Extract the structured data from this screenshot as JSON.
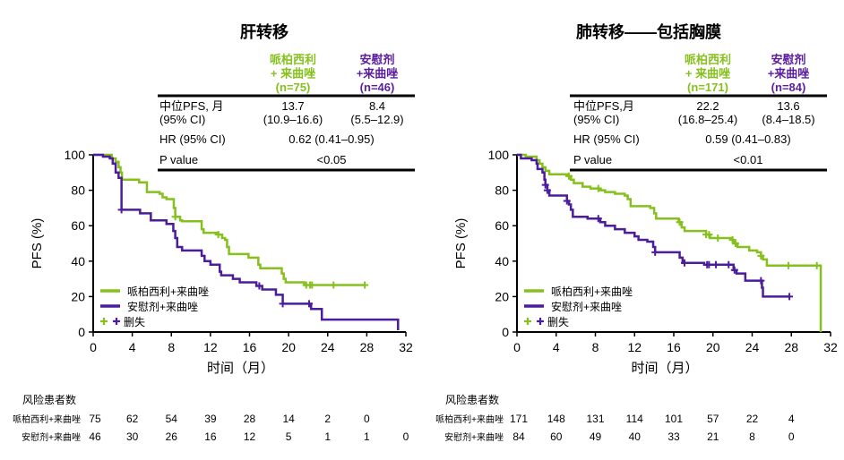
{
  "colors": {
    "treatment": "#86c01c",
    "control": "#4b1c9c",
    "control_text": "#5b1f9e"
  },
  "chart_data": [
    {
      "type": "line",
      "subtype": "kaplan-meier",
      "title": "肝转移",
      "xlabel": "时间（月）",
      "ylabel": "PFS (%)",
      "xlim": [
        0,
        32
      ],
      "ylim": [
        0,
        100
      ],
      "xticks": [
        "0",
        "4",
        "8",
        "12",
        "16",
        "20",
        "24",
        "28",
        "32"
      ],
      "yticks": [
        "0",
        "20",
        "40",
        "60",
        "80",
        "100"
      ],
      "legend": {
        "position": "bottom-left",
        "entries": [
          "哌柏西利+来曲唑",
          "安慰剂+来曲唑"
        ],
        "censor_label": "删失"
      },
      "table": {
        "columns": [
          {
            "lines": [
              "哌柏西利",
              "+ 来曲唑",
              "(n=75)"
            ]
          },
          {
            "lines": [
              "安慰剂",
              "+来曲唑",
              "(n=46)"
            ]
          }
        ],
        "rows": [
          {
            "label": [
              "中位PFS, 月",
              "(95% CI)"
            ],
            "values": [
              [
                "13.7",
                "(10.9–16.6)"
              ],
              [
                "8.4",
                "(5.5–12.9)"
              ]
            ]
          },
          {
            "label": [
              "HR (95% CI)"
            ],
            "shared": "0.62 (0.41–0.95)"
          },
          {
            "label": [
              "P value"
            ],
            "shared": "<0.05"
          }
        ]
      },
      "series": [
        {
          "name": "哌柏西利+来曲唑",
          "steps": [
            [
              0,
              100
            ],
            [
              1.9,
              98
            ],
            [
              2.3,
              96
            ],
            [
              2.6,
              93
            ],
            [
              2.8,
              90
            ],
            [
              2.95,
              86
            ],
            [
              4.7,
              84.5
            ],
            [
              5.5,
              79
            ],
            [
              6.8,
              78
            ],
            [
              7.1,
              76
            ],
            [
              7.5,
              75
            ],
            [
              8.25,
              70
            ],
            [
              8.4,
              65
            ],
            [
              8.9,
              63
            ],
            [
              9.1,
              62.5
            ],
            [
              11.1,
              58
            ],
            [
              11.3,
              56
            ],
            [
              12.8,
              55
            ],
            [
              13.2,
              53
            ],
            [
              13.5,
              52
            ],
            [
              13.7,
              48
            ],
            [
              13.9,
              44
            ],
            [
              15.9,
              42
            ],
            [
              16.9,
              38
            ],
            [
              17.1,
              36
            ],
            [
              19.3,
              33
            ],
            [
              19.5,
              30
            ],
            [
              19.7,
              28
            ],
            [
              21.6,
              26.5
            ]
          ],
          "end": 27.8,
          "censored": [
            8.4,
            12.8,
            21.8,
            22.2,
            22.4,
            24.6,
            27.8
          ]
        },
        {
          "name": "安慰剂+来曲唑",
          "steps": [
            [
              0,
              100
            ],
            [
              1.0,
              99
            ],
            [
              1.7,
              98
            ],
            [
              2.0,
              95
            ],
            [
              2.3,
              90
            ],
            [
              2.6,
              87
            ],
            [
              2.9,
              69
            ],
            [
              4.8,
              67
            ],
            [
              5.9,
              63
            ],
            [
              7.5,
              61
            ],
            [
              8.2,
              57
            ],
            [
              8.4,
              53
            ],
            [
              8.6,
              48
            ],
            [
              9.1,
              46
            ],
            [
              11.1,
              43
            ],
            [
              11.4,
              40
            ],
            [
              12.0,
              38
            ],
            [
              12.95,
              34
            ],
            [
              13.1,
              32
            ],
            [
              14.3,
              30
            ],
            [
              15.0,
              28
            ],
            [
              16.7,
              26
            ],
            [
              17.3,
              24
            ],
            [
              18.7,
              21
            ],
            [
              19.4,
              16
            ],
            [
              22.3,
              13
            ],
            [
              23.4,
              7
            ],
            [
              31.2,
              1
            ]
          ],
          "end": 31.2,
          "censored": [
            2.9,
            17.0,
            19.4,
            22.1
          ]
        }
      ],
      "risk_table": {
        "title": "风险患者数",
        "rows": [
          {
            "label": "哌柏西利+来曲唑",
            "values": [
              "75",
              "62",
              "54",
              "39",
              "28",
              "14",
              "2",
              "0"
            ]
          },
          {
            "label": "安慰剂+来曲唑",
            "values": [
              "46",
              "30",
              "26",
              "16",
              "12",
              "5",
              "1",
              "1",
              "0"
            ]
          }
        ]
      }
    },
    {
      "type": "line",
      "subtype": "kaplan-meier",
      "title": "肺转移——包括胸膜",
      "xlabel": "时间（月）",
      "ylabel": "PFS (%)",
      "xlim": [
        0,
        32
      ],
      "ylim": [
        0,
        100
      ],
      "xticks": [
        "0",
        "4",
        "8",
        "12",
        "16",
        "20",
        "24",
        "28",
        "32"
      ],
      "yticks": [
        "0",
        "20",
        "40",
        "60",
        "80",
        "100"
      ],
      "legend": {
        "position": "bottom-left",
        "entries": [
          "哌柏西利+来曲唑",
          "安慰剂+来曲唑"
        ],
        "censor_label": "删失"
      },
      "table": {
        "columns": [
          {
            "lines": [
              "哌柏西利",
              "+ 来曲唑",
              "(n=171)"
            ]
          },
          {
            "lines": [
              "安慰剂",
              "+来曲唑",
              "(n=84)"
            ]
          }
        ],
        "rows": [
          {
            "label": [
              "中位PFS,月",
              "(95% CI)"
            ],
            "values": [
              [
                "22.2",
                "(16.8–25.4)"
              ],
              [
                "13.6",
                "(8.4–18.5)"
              ]
            ]
          },
          {
            "label": [
              "HR (95% CI)"
            ],
            "shared": "0.59 (0.41–0.83)"
          },
          {
            "label": [
              "P value"
            ],
            "shared": "<0.01"
          }
        ]
      },
      "series": [
        {
          "name": "哌柏西利+来曲唑",
          "steps": [
            [
              0,
              100
            ],
            [
              0.9,
              99
            ],
            [
              2.0,
              97
            ],
            [
              2.3,
              95
            ],
            [
              2.6,
              93
            ],
            [
              2.9,
              91
            ],
            [
              3.3,
              89
            ],
            [
              5.2,
              88
            ],
            [
              5.5,
              86
            ],
            [
              5.8,
              84
            ],
            [
              6.7,
              82
            ],
            [
              7.5,
              81
            ],
            [
              8.5,
              80
            ],
            [
              9.0,
              79
            ],
            [
              10.0,
              78
            ],
            [
              11.0,
              77
            ],
            [
              11.3,
              75
            ],
            [
              11.6,
              71
            ],
            [
              13.6,
              70
            ],
            [
              14.0,
              67
            ],
            [
              14.2,
              64
            ],
            [
              16.5,
              62
            ],
            [
              16.8,
              59
            ],
            [
              17.1,
              57
            ],
            [
              19.3,
              55
            ],
            [
              19.7,
              53
            ],
            [
              21.9,
              52
            ],
            [
              22.1,
              50
            ],
            [
              22.5,
              48
            ],
            [
              23.7,
              46
            ],
            [
              24.5,
              45
            ],
            [
              24.9,
              43
            ],
            [
              25.1,
              41
            ],
            [
              25.5,
              37.5
            ],
            [
              31.0,
              0
            ]
          ],
          "end": 31.0,
          "censored": [
            5.3,
            8.3,
            16.6,
            19.3,
            19.6,
            20.5,
            22.0,
            22.3,
            24.9,
            27.7,
            30.6
          ]
        },
        {
          "name": "安慰剂+来曲唑",
          "steps": [
            [
              0,
              100
            ],
            [
              0.4,
              98
            ],
            [
              1.5,
              97
            ],
            [
              2.0,
              95
            ],
            [
              2.1,
              92
            ],
            [
              2.6,
              90
            ],
            [
              2.8,
              86
            ],
            [
              2.9,
              83
            ],
            [
              3.1,
              80
            ],
            [
              3.3,
              77
            ],
            [
              5.1,
              74
            ],
            [
              5.3,
              72
            ],
            [
              5.5,
              69
            ],
            [
              5.7,
              65
            ],
            [
              7.2,
              64
            ],
            [
              8.5,
              62
            ],
            [
              9.0,
              60
            ],
            [
              10.0,
              58
            ],
            [
              11.0,
              56
            ],
            [
              12.0,
              54
            ],
            [
              12.4,
              52
            ],
            [
              13.3,
              51
            ],
            [
              13.9,
              48
            ],
            [
              14.1,
              45
            ],
            [
              16.6,
              42
            ],
            [
              16.9,
              39
            ],
            [
              19.1,
              38
            ],
            [
              22.1,
              35
            ],
            [
              22.4,
              33
            ],
            [
              23.3,
              29
            ],
            [
              25.0,
              25
            ],
            [
              25.1,
              20
            ]
          ],
          "end": 27.8,
          "censored": [
            2.9,
            3.1,
            5.1,
            8.3,
            14.1,
            17.1,
            19.4,
            19.6,
            20.3,
            21.6,
            22.2,
            24.9,
            27.8
          ]
        }
      ],
      "risk_table": {
        "title": "风险患者数",
        "rows": [
          {
            "label": "哌柏西利+来曲唑",
            "values": [
              "171",
              "148",
              "131",
              "114",
              "101",
              "57",
              "22",
              "4"
            ]
          },
          {
            "label": "安慰剂+来曲唑",
            "values": [
              "84",
              "60",
              "49",
              "40",
              "33",
              "21",
              "8",
              "0"
            ]
          }
        ]
      }
    }
  ]
}
